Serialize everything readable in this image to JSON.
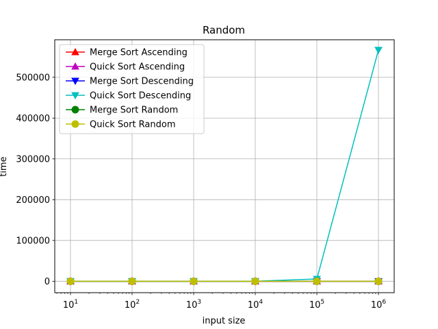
{
  "chart_data": {
    "type": "line",
    "title": "Random",
    "xlabel": "input size",
    "ylabel": "time",
    "x_scale": "log",
    "x": [
      10,
      100,
      1000,
      10000,
      100000,
      1000000
    ],
    "x_tick_labels": [
      {
        "base": "10",
        "exp": "1"
      },
      {
        "base": "10",
        "exp": "2"
      },
      {
        "base": "10",
        "exp": "3"
      },
      {
        "base": "10",
        "exp": "4"
      },
      {
        "base": "10",
        "exp": "5"
      },
      {
        "base": "10",
        "exp": "6"
      }
    ],
    "y_ticks": [
      0,
      100000,
      200000,
      300000,
      400000,
      500000
    ],
    "y_tick_labels": [
      "0",
      "100000",
      "200000",
      "300000",
      "400000",
      "500000"
    ],
    "ylim": [
      -28000,
      592000
    ],
    "grid": true,
    "legend_position": "upper-left",
    "series": [
      {
        "name": "Merge Sort Ascending",
        "color": "#ff0000",
        "marker": "triangle-up",
        "values": [
          0,
          0,
          0,
          0,
          0,
          0
        ]
      },
      {
        "name": "Quick Sort Ascending",
        "color": "#bf00bf",
        "marker": "triangle-up",
        "values": [
          0,
          0,
          0,
          0,
          0,
          0
        ]
      },
      {
        "name": "Merge Sort Descending",
        "color": "#0000ff",
        "marker": "triangle-down",
        "values": [
          0,
          0,
          0,
          0,
          0,
          0
        ]
      },
      {
        "name": "Quick Sort Descending",
        "color": "#00bfbf",
        "marker": "triangle-down",
        "values": [
          0,
          0,
          0,
          0,
          5500,
          567000
        ]
      },
      {
        "name": "Merge Sort Random",
        "color": "#008000",
        "marker": "circle",
        "values": [
          0,
          0,
          0,
          0,
          0,
          0
        ]
      },
      {
        "name": "Quick Sort Random",
        "color": "#bfbf00",
        "marker": "circle",
        "values": [
          0,
          0,
          0,
          0,
          0,
          0
        ]
      }
    ]
  }
}
